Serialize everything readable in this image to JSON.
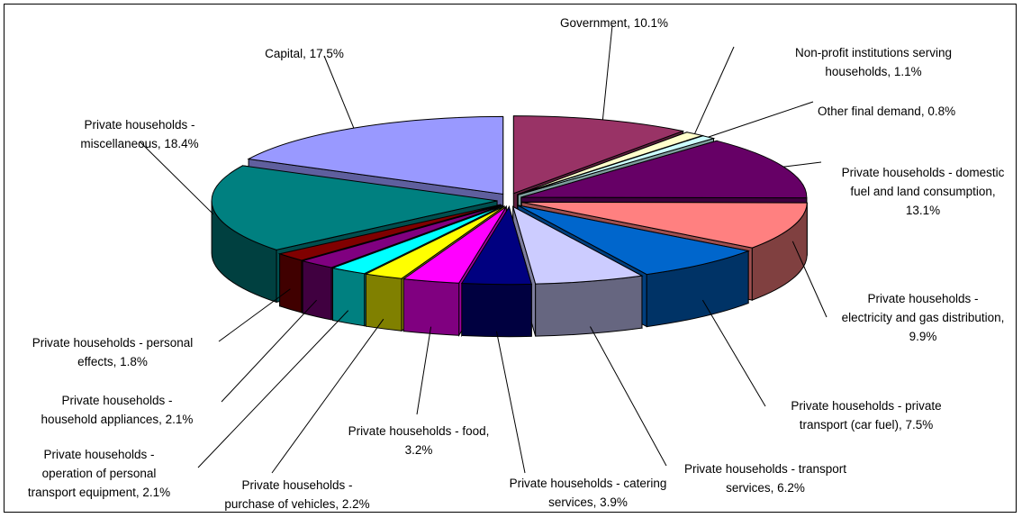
{
  "chart_data": {
    "type": "pie",
    "title": "",
    "slices": [
      {
        "label": [
          "Government, 10.1%"
        ],
        "value": 10.1,
        "color": "#993366"
      },
      {
        "label": [
          "Non-profit institutions serving",
          "households, 1.1%"
        ],
        "value": 1.1,
        "color": "#FFFFCC"
      },
      {
        "label": [
          "Other final demand, 0.8%"
        ],
        "value": 0.8,
        "color": "#CCFFFF"
      },
      {
        "label": [
          "Private households - domestic",
          "fuel and land consumption,",
          "13.1%"
        ],
        "value": 13.1,
        "color": "#660066"
      },
      {
        "label": [
          "Private households -",
          "electricity and gas distribution,",
          "9.9%"
        ],
        "value": 9.9,
        "color": "#FF8080"
      },
      {
        "label": [
          "Private households - private",
          "transport (car fuel), 7.5%"
        ],
        "value": 7.5,
        "color": "#0066CC"
      },
      {
        "label": [
          "Private households - transport",
          "services, 6.2%"
        ],
        "value": 6.2,
        "color": "#CCCCFF"
      },
      {
        "label": [
          "Private households - catering",
          "services, 3.9%"
        ],
        "value": 3.9,
        "color": "#000080"
      },
      {
        "label": [
          "Private households - food,",
          "3.2%"
        ],
        "value": 3.2,
        "color": "#FF00FF"
      },
      {
        "label": [
          "Private households -",
          "purchase of vehicles, 2.2%"
        ],
        "value": 2.2,
        "color": "#FFFF00"
      },
      {
        "label": [
          "Private households -",
          "operation of personal",
          "transport equipment, 2.1%"
        ],
        "value": 2.1,
        "color": "#00FFFF"
      },
      {
        "label": [
          "Private households -",
          "household appliances, 2.1%"
        ],
        "value": 2.1,
        "color": "#800080"
      },
      {
        "label": [
          "Private households - personal",
          "effects, 1.8%"
        ],
        "value": 1.8,
        "color": "#800000"
      },
      {
        "label": [
          "Private households -",
          "miscellaneous, 18.4%"
        ],
        "value": 18.4,
        "color": "#008080"
      },
      {
        "label": [
          "Capital, 17.5%"
        ],
        "value": 17.5,
        "color": "#9999FF"
      }
    ]
  }
}
